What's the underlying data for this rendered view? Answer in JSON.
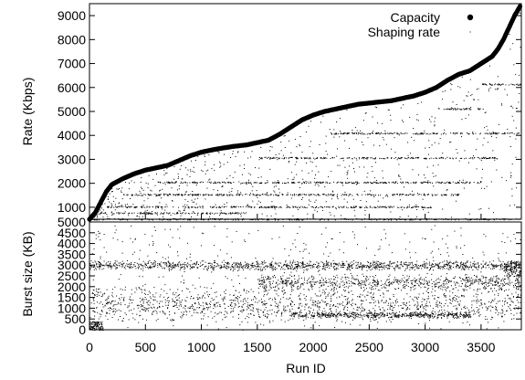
{
  "chart_data": [
    {
      "type": "scatter",
      "panel": "top",
      "xlabel": "",
      "ylabel": "Rate (Kbps)",
      "xlim": [
        0,
        3860
      ],
      "ylim": [
        500,
        9500
      ],
      "y_ticks": [
        1000,
        2000,
        3000,
        4000,
        5000,
        6000,
        7000,
        8000,
        9000
      ],
      "grid": false,
      "legend_position": "top-right",
      "series": [
        {
          "name": "Capacity",
          "marker": "large-dot",
          "x": [
            0,
            50,
            100,
            150,
            200,
            300,
            400,
            500,
            600,
            700,
            800,
            900,
            1000,
            1100,
            1200,
            1300,
            1400,
            1500,
            1600,
            1700,
            1800,
            1900,
            2000,
            2100,
            2200,
            2300,
            2400,
            2500,
            2600,
            2700,
            2800,
            2900,
            3000,
            3100,
            3200,
            3300,
            3400,
            3500,
            3600,
            3650,
            3700,
            3750,
            3800,
            3850
          ],
          "y": [
            500,
            760,
            1200,
            1650,
            1950,
            2200,
            2400,
            2550,
            2650,
            2750,
            2950,
            3150,
            3300,
            3400,
            3480,
            3550,
            3600,
            3700,
            3800,
            4050,
            4350,
            4650,
            4850,
            5000,
            5100,
            5200,
            5300,
            5350,
            5400,
            5450,
            5550,
            5650,
            5800,
            6000,
            6300,
            6550,
            6700,
            7000,
            7300,
            7600,
            8000,
            8500,
            9000,
            9400
          ]
        },
        {
          "name": "Shaping rate",
          "marker": "small-dot",
          "bands": [
            {
              "rate": 512,
              "x_range": [
                0,
                3850
              ]
            },
            {
              "rate": 768,
              "x_range": [
                80,
                1400
              ]
            },
            {
              "rate": 1024,
              "x_range": [
                150,
                3050
              ]
            },
            {
              "rate": 1536,
              "x_range": [
                300,
                3300
              ]
            },
            {
              "rate": 2048,
              "x_range": [
                600,
                3500
              ]
            },
            {
              "rate": 3072,
              "x_range": [
                1500,
                3650
              ]
            },
            {
              "rate": 4096,
              "x_range": [
                2150,
                3850
              ]
            },
            {
              "rate": 5120,
              "x_range": [
                3100,
                3550
              ]
            },
            {
              "rate": 6144,
              "x_range": [
                3500,
                3850
              ]
            }
          ]
        }
      ]
    },
    {
      "type": "scatter",
      "panel": "bottom",
      "xlabel": "Run ID",
      "ylabel": "Burst size (KB)",
      "xlim": [
        0,
        3860
      ],
      "ylim": [
        0,
        5000
      ],
      "x_ticks": [
        0,
        500,
        1000,
        1500,
        2000,
        2500,
        3000,
        3500
      ],
      "y_ticks": [
        0,
        500,
        1000,
        1500,
        2000,
        2500,
        3000,
        3500,
        4000,
        4500,
        5000
      ],
      "grid": false,
      "clusters": [
        {
          "x_range": [
            0,
            3850
          ],
          "y_center": 3000,
          "y_spread": 250
        },
        {
          "x_range": [
            1500,
            3850
          ],
          "y_center": 2200,
          "y_spread": 400
        },
        {
          "x_range": [
            0,
            3850
          ],
          "y_center": 1200,
          "y_spread": 900
        },
        {
          "x_range": [
            1800,
            3400
          ],
          "y_center": 700,
          "y_spread": 150
        }
      ]
    }
  ],
  "labels": {
    "legend_capacity": "Capacity",
    "legend_shaping": "Shaping rate",
    "top_ylabel": "Rate (Kbps)",
    "bottom_ylabel": "Burst size (KB)",
    "xlabel": "Run ID"
  }
}
